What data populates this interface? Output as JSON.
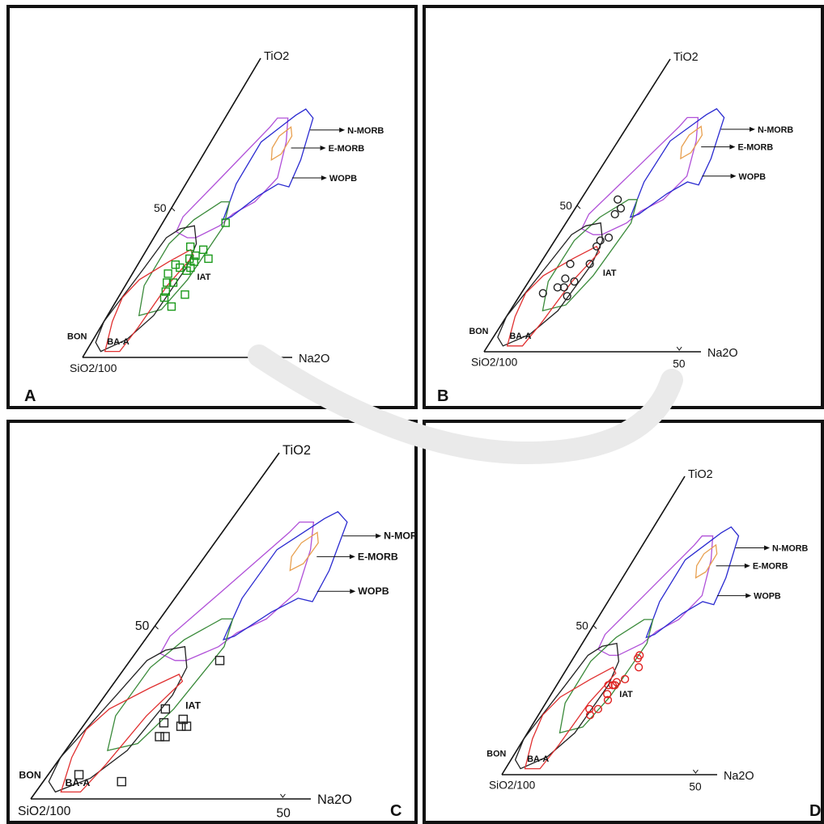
{
  "chart_data": [
    {
      "type": "scatter",
      "panel_label": "A",
      "marker": "square",
      "marker_color": "#1a9a1a",
      "axes": {
        "apex": "TiO2",
        "bottom_left": "SiO2/100",
        "bottom_right": "Na2O",
        "left_tick": "50",
        "bottom_tick": "50"
      },
      "fields": [
        "N-MORB",
        "E-MORB",
        "WOPB",
        "IAT",
        "BON",
        "BA-A"
      ],
      "points": [
        [
          26,
          32
        ],
        [
          20,
          37
        ],
        [
          27,
          36
        ],
        [
          23,
          33
        ],
        [
          25,
          34
        ],
        [
          32,
          33
        ],
        [
          26,
          30
        ],
        [
          25,
          29
        ],
        [
          18,
          31
        ],
        [
          17,
          28
        ],
        [
          21,
          30
        ],
        [
          19,
          25
        ],
        [
          22,
          25
        ],
        [
          21,
          22
        ],
        [
          22,
          20
        ],
        [
          31,
          21
        ],
        [
          28,
          17
        ],
        [
          30,
          45
        ]
      ]
    },
    {
      "type": "scatter",
      "panel_label": "B",
      "marker": "circle",
      "marker_color": "#222222",
      "axes": {
        "apex": "TiO2",
        "bottom_left": "SiO2/100",
        "bottom_right": "Na2O",
        "left_tick": "50",
        "bottom_tick": "50"
      },
      "fields": [
        "N-MORB",
        "E-MORB",
        "WOPB",
        "IAT",
        "BON",
        "BA-A"
      ],
      "points": [
        [
          17,
          52
        ],
        [
          21,
          49
        ],
        [
          20,
          47
        ],
        [
          24,
          39
        ],
        [
          21,
          36
        ],
        [
          21,
          38
        ],
        [
          14,
          30
        ],
        [
          23,
          30
        ],
        [
          16,
          25
        ],
        [
          10,
          20
        ],
        [
          15,
          22
        ],
        [
          18,
          22
        ],
        [
          21,
          24
        ],
        [
          22,
          19
        ]
      ]
    },
    {
      "type": "scatter",
      "panel_label": "C",
      "marker": "square",
      "marker_color": "#222222",
      "axes": {
        "apex": "TiO2",
        "bottom_left": "SiO2/100",
        "bottom_right": "Na2O",
        "left_tick": "50",
        "bottom_tick": "50"
      },
      "fields": [
        "N-MORB",
        "E-MORB",
        "WOPB",
        "IAT",
        "BON",
        "BA-A"
      ],
      "points": [
        [
          32,
          40
        ],
        [
          25,
          26
        ],
        [
          28,
          22
        ],
        [
          30,
          18
        ],
        [
          32,
          18
        ],
        [
          34,
          23
        ],
        [
          35,
          21
        ],
        [
          37,
          21
        ],
        [
          11,
          7
        ],
        [
          28,
          5
        ]
      ]
    },
    {
      "type": "scatter",
      "panel_label": "D",
      "marker": "circle",
      "marker_color": "#e02020",
      "axes": {
        "apex": "TiO2",
        "bottom_left": "SiO2/100",
        "bottom_right": "Na2O",
        "left_tick": "50",
        "bottom_tick": "50"
      },
      "fields": [
        "N-MORB",
        "E-MORB",
        "WOPB",
        "IAT",
        "BON",
        "BA-A"
      ],
      "points": [
        [
          30,
          40
        ],
        [
          30,
          39
        ],
        [
          33,
          36
        ],
        [
          24,
          30
        ],
        [
          26,
          30
        ],
        [
          27,
          30
        ],
        [
          27,
          31
        ],
        [
          30,
          32
        ],
        [
          26,
          27
        ],
        [
          28,
          25
        ],
        [
          22,
          22
        ],
        [
          26,
          22
        ],
        [
          24,
          20
        ]
      ]
    }
  ],
  "colors": {
    "N-MORB": "#2a2ad0",
    "E-MORB": "#e8a050",
    "WOPB": "#2a2ad0",
    "upper_field": "#b050d8",
    "IAT": "#3a8a3a",
    "BON": "#222222",
    "BA-A": "#e03030"
  }
}
